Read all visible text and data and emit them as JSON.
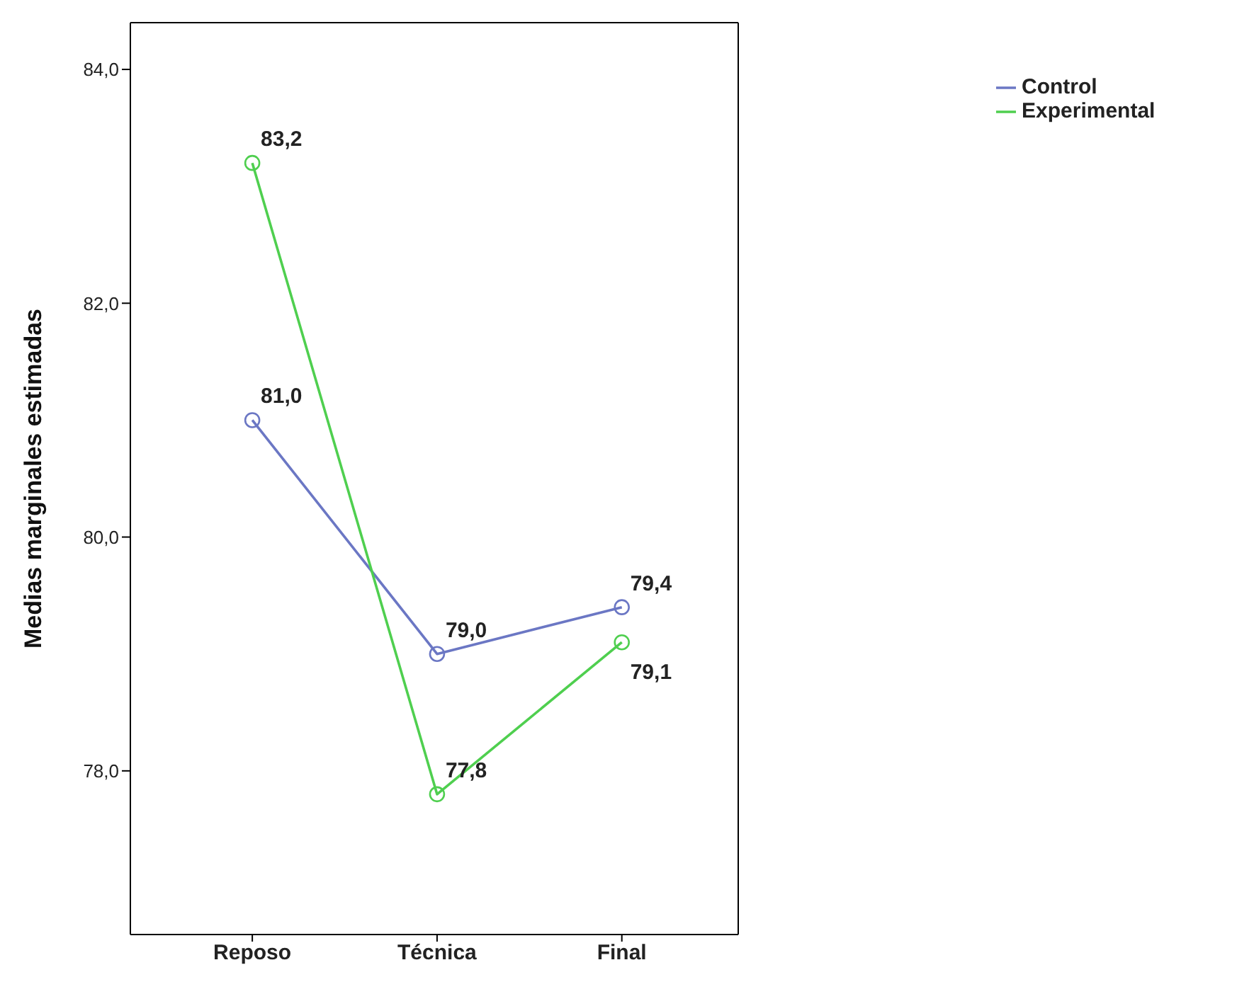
{
  "chart_data": {
    "type": "line",
    "ylabel": "Medias marginales estimadas",
    "categories": [
      "Reposo",
      "Técnica",
      "Final"
    ],
    "series": [
      {
        "name": "Control",
        "color": "#6b77c4",
        "values": [
          81.0,
          79.0,
          79.4
        ],
        "value_labels": [
          "81,0",
          "79,0",
          "79,4"
        ]
      },
      {
        "name": "Experimental",
        "color": "#4fcf4f",
        "values": [
          83.2,
          77.8,
          79.1
        ],
        "value_labels": [
          "83,2",
          "77,8",
          "79,1"
        ]
      }
    ],
    "ylim": [
      76.6,
      84.4
    ],
    "yticks": [
      {
        "value": 78,
        "label": "78,0"
      },
      {
        "value": 80,
        "label": "80,0"
      },
      {
        "value": 82,
        "label": "82,0"
      },
      {
        "value": 84,
        "label": "84,0"
      }
    ],
    "grid": false,
    "legend": "top right",
    "marker": "circle",
    "line_style": "solid"
  }
}
